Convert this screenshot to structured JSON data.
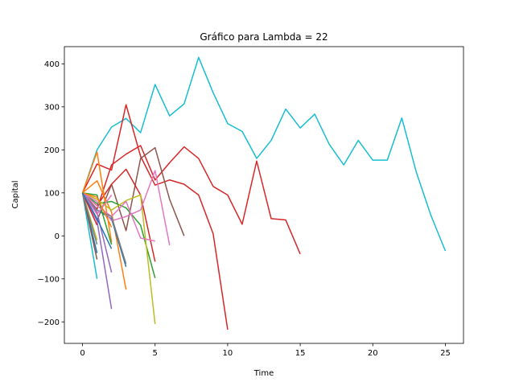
{
  "chart_data": {
    "type": "line",
    "title": "Gráfico para Lambda = 22",
    "xlabel": "Time",
    "ylabel": "Capital",
    "xlim": [
      -1.25,
      26.25
    ],
    "ylim": [
      -250,
      440
    ],
    "xticks": [
      0,
      5,
      10,
      15,
      20,
      25
    ],
    "yticks": [
      -200,
      -100,
      0,
      100,
      200,
      300,
      400
    ],
    "xtick_labels": [
      "0",
      "5",
      "10",
      "15",
      "20",
      "25"
    ],
    "ytick_labels": [
      "−200",
      "−100",
      "0",
      "100",
      "200",
      "300",
      "400"
    ],
    "grid": false,
    "legend": "none",
    "series": [
      {
        "color": "#17becf",
        "x": [
          0,
          1,
          2,
          3,
          4,
          5,
          6,
          7,
          8,
          9,
          10,
          11,
          12,
          13,
          14,
          15,
          16,
          17,
          18,
          19,
          20,
          21,
          22,
          23,
          24,
          25
        ],
        "y": [
          100,
          200,
          253,
          273,
          240,
          352,
          279,
          307,
          415,
          333,
          261,
          243,
          180,
          222,
          295,
          251,
          283,
          213,
          165,
          222,
          176,
          176,
          274,
          148,
          48,
          -35
        ]
      },
      {
        "color": "#d62728",
        "x": [
          0,
          1,
          2,
          3,
          4,
          5,
          6,
          7,
          8,
          9,
          10
        ],
        "y": [
          100,
          167,
          153,
          305,
          185,
          118,
          130,
          120,
          95,
          5,
          -218
        ]
      },
      {
        "color": "#d62728",
        "x": [
          0,
          1,
          2,
          3,
          4,
          5,
          6,
          7,
          8,
          9,
          10,
          11,
          12,
          13,
          14,
          15
        ],
        "y": [
          100,
          62,
          165,
          190,
          210,
          130,
          170,
          207,
          180,
          115,
          95,
          27,
          174,
          40,
          37,
          -42
        ]
      },
      {
        "color": "#8c564b",
        "x": [
          0,
          1,
          2,
          3,
          4,
          5,
          6,
          7
        ],
        "y": [
          100,
          35,
          120,
          12,
          180,
          205,
          85,
          0
        ]
      },
      {
        "color": "#d62728",
        "x": [
          0,
          1,
          2,
          3,
          4,
          5
        ],
        "y": [
          100,
          70,
          120,
          155,
          95,
          -60
        ]
      },
      {
        "color": "#ff7f0e",
        "x": [
          0,
          1,
          2,
          3
        ],
        "y": [
          100,
          128,
          55,
          -125
        ]
      },
      {
        "color": "#ff7f0e",
        "x": [
          0,
          1,
          2
        ],
        "y": [
          100,
          195,
          -15
        ]
      },
      {
        "color": "#2ca02c",
        "x": [
          0,
          1,
          2,
          3,
          4,
          5
        ],
        "y": [
          100,
          75,
          80,
          65,
          25,
          -98
        ]
      },
      {
        "color": "#bcbd22",
        "x": [
          0,
          1,
          2,
          3,
          4,
          5
        ],
        "y": [
          100,
          85,
          60,
          82,
          95,
          -205
        ]
      },
      {
        "color": "#9467bd",
        "x": [
          0,
          1,
          2
        ],
        "y": [
          100,
          35,
          -170
        ]
      },
      {
        "color": "#1f77b4",
        "x": [
          0,
          1,
          2,
          3
        ],
        "y": [
          100,
          60,
          40,
          -72
        ]
      },
      {
        "color": "#e377c2",
        "x": [
          0,
          1,
          2,
          3,
          4,
          5,
          6
        ],
        "y": [
          100,
          80,
          35,
          45,
          60,
          152,
          -22
        ]
      },
      {
        "color": "#e377c2",
        "x": [
          0,
          1,
          2,
          3,
          4,
          5
        ],
        "y": [
          100,
          70,
          45,
          80,
          -5,
          -12
        ]
      },
      {
        "color": "#7f7f7f",
        "x": [
          0,
          1,
          2,
          3
        ],
        "y": [
          100,
          60,
          45,
          -65
        ]
      },
      {
        "color": "#17becf",
        "x": [
          0,
          1
        ],
        "y": [
          100,
          -100
        ]
      },
      {
        "color": "#2ca02c",
        "x": [
          0,
          1,
          2
        ],
        "y": [
          100,
          95,
          -20
        ]
      },
      {
        "color": "#9467bd",
        "x": [
          0,
          1,
          2
        ],
        "y": [
          100,
          55,
          -85
        ]
      },
      {
        "color": "#1f77b4",
        "x": [
          0,
          1
        ],
        "y": [
          100,
          -40
        ]
      },
      {
        "color": "#8c564b",
        "x": [
          0,
          1
        ],
        "y": [
          100,
          -55
        ]
      },
      {
        "color": "#e377c2",
        "x": [
          0,
          1,
          2
        ],
        "y": [
          100,
          50,
          95
        ]
      },
      {
        "color": "#bcbd22",
        "x": [
          0,
          1
        ],
        "y": [
          100,
          -10
        ]
      },
      {
        "color": "#ff7f0e",
        "x": [
          0,
          1,
          2
        ],
        "y": [
          100,
          90,
          20
        ]
      },
      {
        "color": "#d62728",
        "x": [
          0,
          1
        ],
        "y": [
          100,
          25
        ]
      },
      {
        "color": "#7f7f7f",
        "x": [
          0,
          1
        ],
        "y": [
          100,
          -20
        ]
      },
      {
        "color": "#1f77b4",
        "x": [
          0,
          1,
          2
        ],
        "y": [
          100,
          40,
          -30
        ]
      }
    ]
  }
}
